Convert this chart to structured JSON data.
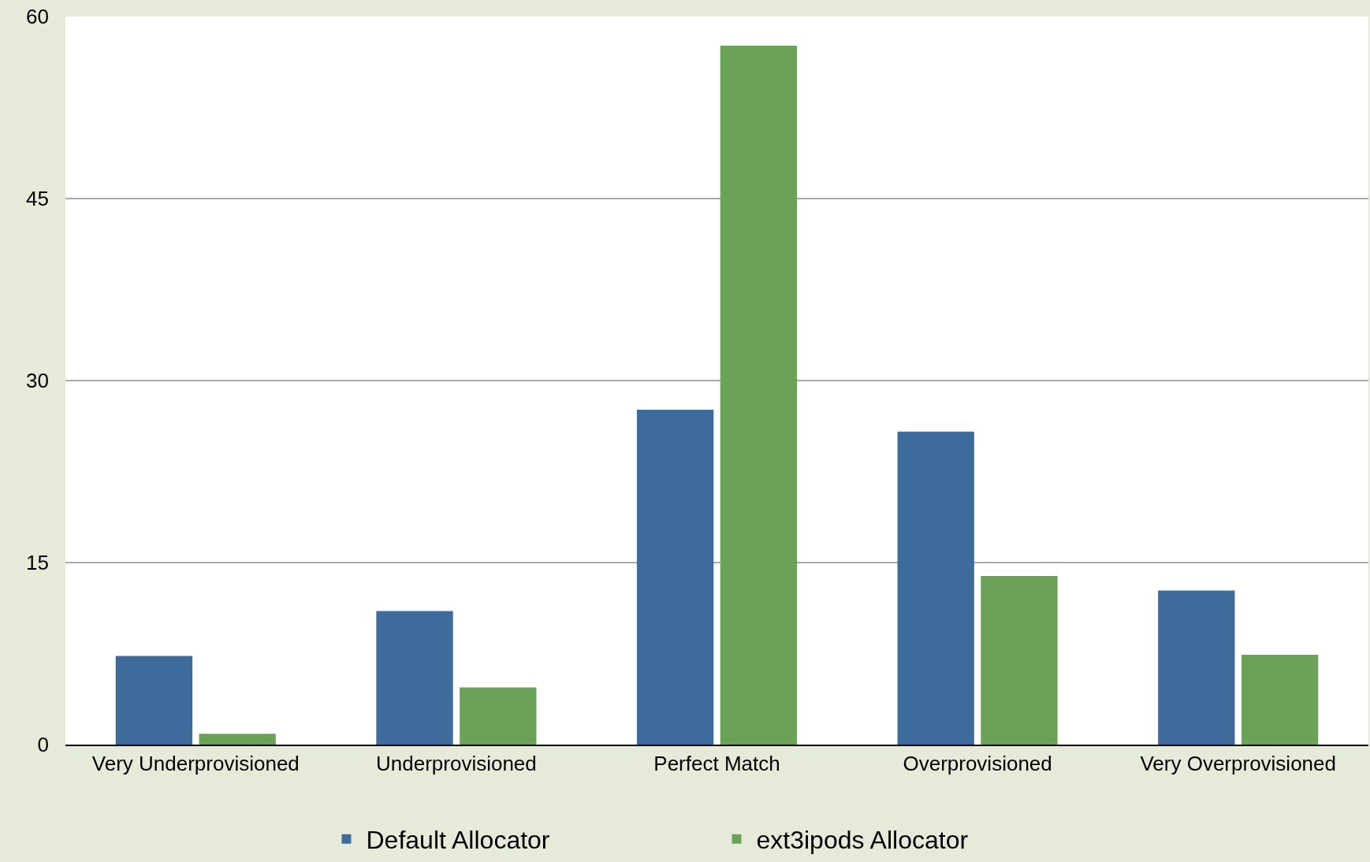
{
  "chart_data": {
    "type": "bar",
    "categories": [
      "Very Underprovisioned",
      "Underprovisioned",
      "Perfect Match",
      "Overprovisioned",
      "Very Overprovisioned"
    ],
    "series": [
      {
        "name": "Default Allocator",
        "color": "#3d6b9c",
        "values": [
          7.3,
          11.0,
          27.6,
          25.8,
          12.7
        ]
      },
      {
        "name": "ext3ipods Allocator",
        "color": "#6aa358",
        "values": [
          0.9,
          4.7,
          57.6,
          13.9,
          7.4
        ]
      }
    ],
    "ylim": [
      0,
      60
    ],
    "yticks": [
      0,
      15,
      30,
      45,
      60
    ],
    "grid": "y",
    "legend": "bottom"
  }
}
